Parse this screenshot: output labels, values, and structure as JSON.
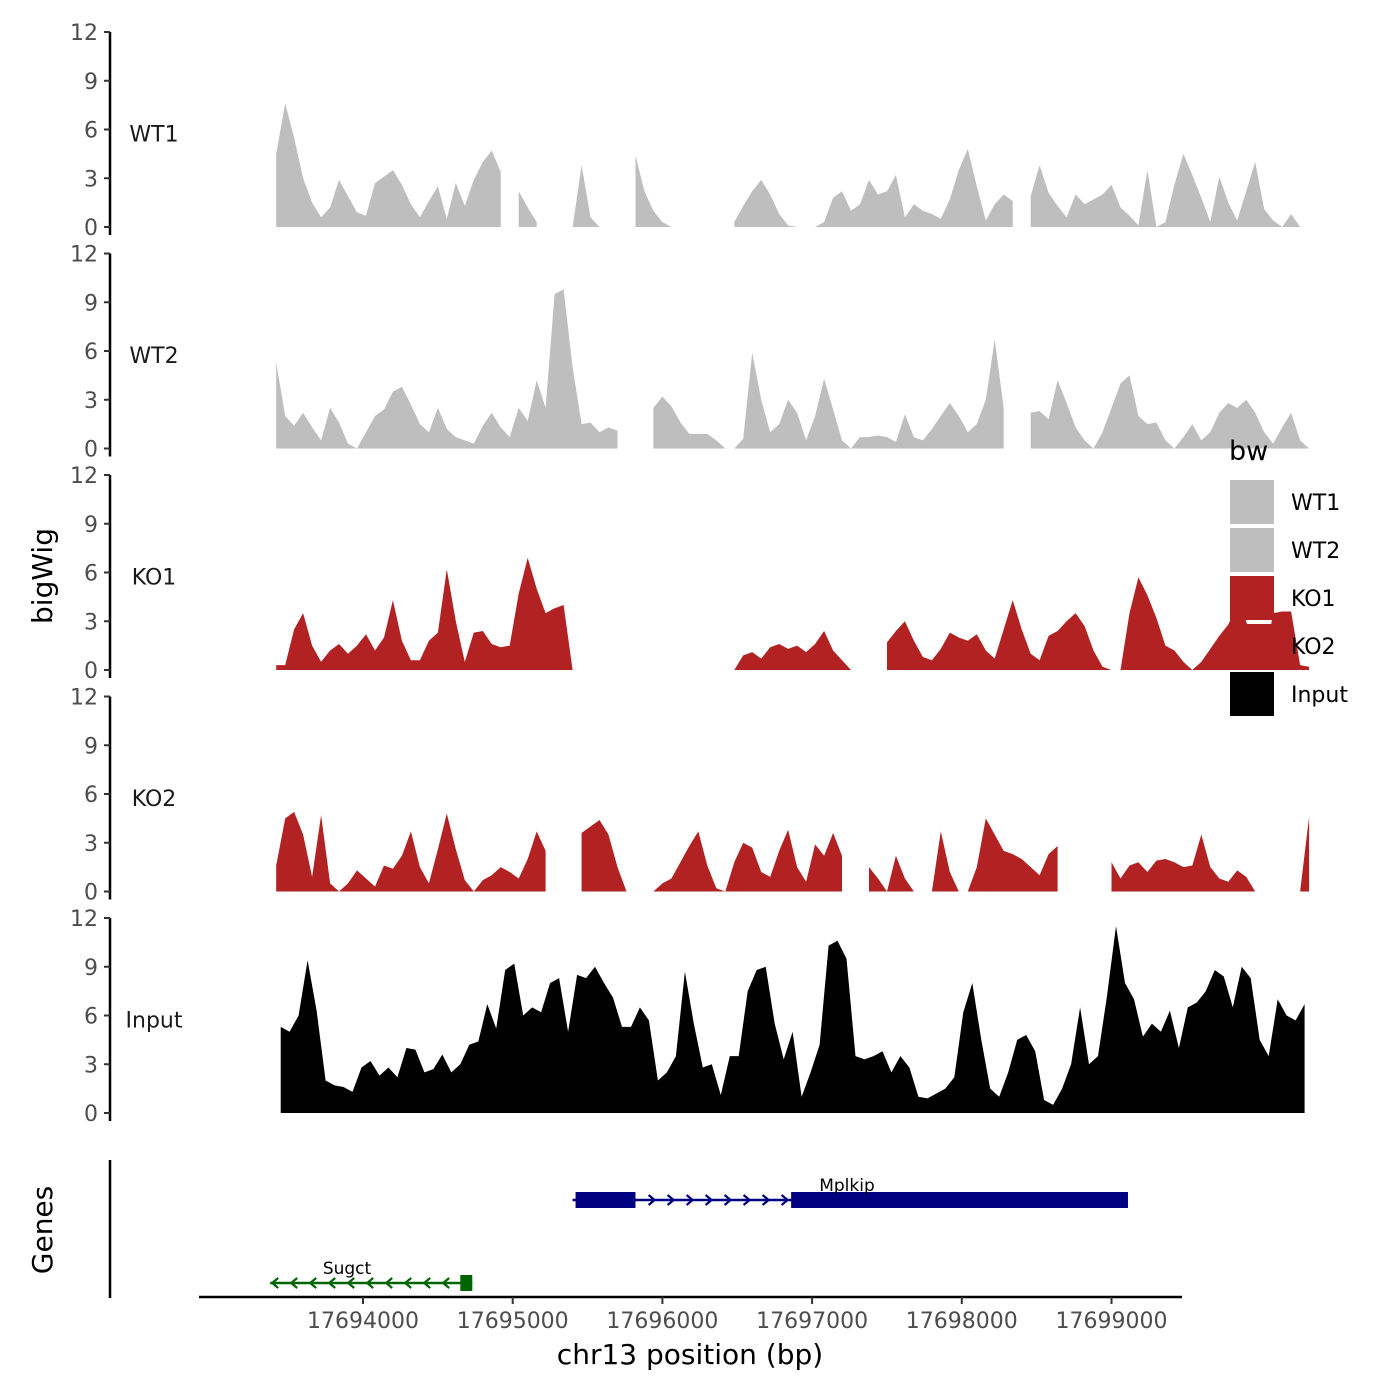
{
  "chart_data": {
    "type": "area",
    "ylabel": "bigWig",
    "xlabel": "chr13 position (bp)",
    "xlim": [
      17693100,
      17699200
    ],
    "x_ticks": [
      17694000,
      17695000,
      17696000,
      17697000,
      17698000,
      17699000
    ],
    "x_tick_labels": [
      "17694000",
      "17695000",
      "17696000",
      "17697000",
      "17698000",
      "17699000"
    ],
    "ylim": [
      0,
      12
    ],
    "y_ticks": [
      0,
      3,
      6,
      9,
      12
    ],
    "y_tick_labels": [
      "0",
      "3",
      "6",
      "9",
      "12"
    ],
    "legend": {
      "title": "bw",
      "placement": "right",
      "entries": [
        {
          "label": "WT1",
          "color": "#bebebe"
        },
        {
          "label": "WT2",
          "color": "#bebebe"
        },
        {
          "label": "KO1",
          "color": "#b22222"
        },
        {
          "label": "KO2",
          "color": "#b22222"
        },
        {
          "label": "Input",
          "color": "#000000"
        }
      ]
    },
    "series": [
      {
        "name": "WT1",
        "color": "#bebebe",
        "x_start": 17693420,
        "step": 60,
        "values": [
          4.5,
          7.6,
          5.5,
          3.0,
          1.5,
          0.6,
          1.2,
          2.9,
          1.9,
          0.9,
          0.7,
          2.7,
          3.1,
          3.5,
          2.6,
          1.4,
          0.6,
          1.6,
          2.5,
          0.5,
          2.7,
          1.3,
          2.9,
          4.0,
          4.7,
          3.4,
          2.2,
          2.2,
          1.2,
          0.3,
          0,
          0,
          0,
          0,
          3.8,
          0.6,
          0,
          0,
          2.8,
          1.8,
          4.4,
          2.2,
          1.0,
          0.3,
          0,
          0,
          0,
          0,
          0,
          0,
          0,
          0.3,
          1.3,
          2.2,
          2.9,
          2.0,
          0.8,
          0.1,
          0,
          0,
          0,
          0.3,
          1.8,
          2.2,
          1.0,
          1.4,
          2.9,
          2.0,
          2.2,
          3.2,
          0.6,
          1.4,
          1.0,
          0.8,
          0.5,
          1.7,
          3.5,
          4.8,
          2.5,
          0.4,
          1.4,
          2.0,
          1.6,
          0.4,
          1.9,
          3.8,
          2.1,
          1.3,
          0.6,
          2.0,
          1.4,
          1.7,
          2.0,
          2.6,
          1.2,
          0.7,
          0.1,
          3.5,
          0,
          0.3,
          2.6,
          4.5,
          3.2,
          1.8,
          0.3,
          3.1,
          1.5,
          0.4,
          2.2,
          4.0,
          1.1,
          0.4,
          0.0,
          0.8,
          0.0
        ],
        "gaps": [
          [
            17694960,
            17695000
          ],
          [
            17695200,
            17695240
          ],
          [
            17695600,
            17695780
          ],
          [
            17696360,
            17696440
          ],
          [
            17698360,
            17698400
          ]
        ]
      },
      {
        "name": "WT2",
        "color": "#bebebe",
        "x_start": 17693420,
        "step": 60,
        "values": [
          5.3,
          2.0,
          1.4,
          2.2,
          1.3,
          0.5,
          2.5,
          1.6,
          0.3,
          0,
          1.0,
          2.0,
          2.4,
          3.5,
          3.8,
          2.7,
          1.5,
          1.0,
          2.5,
          1.2,
          0.7,
          0.5,
          0.3,
          1.4,
          2.2,
          1.3,
          0.7,
          2.5,
          1.7,
          4.2,
          2.5,
          9.5,
          9.8,
          5.0,
          1.5,
          1.6,
          1.0,
          1.3,
          1.1,
          1.9,
          4.3,
          3.1,
          2.5,
          3.2,
          2.6,
          1.6,
          0.9,
          0.9,
          0.9,
          0.5,
          0,
          0,
          0.6,
          5.9,
          3.0,
          1.0,
          1.5,
          3.0,
          2.2,
          0.5,
          2.0,
          4.3,
          2.4,
          0.5,
          0.0,
          0.7,
          0.7,
          0.8,
          0.7,
          0.4,
          2.1,
          0.7,
          0.5,
          1.2,
          2.0,
          2.8,
          2.0,
          1.0,
          1.5,
          3.0,
          6.7,
          2.5,
          1.5,
          1.1,
          2.2,
          2.3,
          1.8,
          4.2,
          2.8,
          1.3,
          0.5,
          0,
          1.0,
          2.5,
          4.0,
          4.5,
          2.0,
          1.5,
          1.6,
          0.5,
          0,
          0.7,
          1.5,
          0.5,
          1.0,
          2.2,
          2.8,
          2.5,
          3.0,
          2.2,
          1.0,
          0.3,
          1.3,
          2.2,
          0.5,
          0.0
        ],
        "gaps": [
          [
            17695760,
            17695880
          ],
          [
            17698340,
            17698420
          ]
        ]
      },
      {
        "name": "KO1",
        "color": "#b22222",
        "x_start": 17693420,
        "step": 60,
        "values": [
          0.3,
          0.3,
          2.5,
          3.5,
          1.5,
          0.5,
          1.2,
          1.6,
          1.0,
          1.5,
          2.2,
          1.2,
          2.0,
          4.3,
          1.8,
          0.6,
          0.6,
          1.8,
          2.3,
          6.2,
          3.0,
          0.5,
          2.3,
          2.4,
          1.6,
          1.4,
          1.5,
          4.7,
          6.9,
          5.0,
          3.5,
          3.8,
          4.0,
          0,
          0,
          0,
          0,
          0,
          0,
          0.6,
          0.7,
          0.3,
          0,
          0,
          0,
          0,
          0,
          0,
          0,
          0,
          0,
          0,
          0.9,
          1.1,
          0.7,
          1.4,
          1.6,
          1.3,
          1.5,
          1.1,
          1.6,
          2.4,
          1.2,
          0.6,
          0,
          0,
          0,
          0.8,
          1.7,
          2.4,
          3.0,
          1.8,
          0.8,
          0.6,
          1.3,
          2.3,
          2.0,
          1.8,
          2.2,
          1.2,
          0.7,
          2.5,
          4.3,
          2.5,
          1.0,
          0.6,
          2.1,
          2.4,
          3.0,
          3.5,
          2.7,
          1.2,
          0.2,
          0,
          0,
          3.5,
          5.7,
          4.6,
          3.2,
          1.5,
          1.2,
          0.5,
          0,
          0.5,
          1.3,
          2.1,
          2.8,
          4.0,
          3.0,
          1.0,
          0.5,
          3.5,
          3.6,
          3.6,
          0.3,
          0.2
        ],
        "gaps": [
          [
            17695420,
            17695940
          ],
          [
            17697400,
            17697470
          ]
        ]
      },
      {
        "name": "KO2",
        "color": "#b22222",
        "x_start": 17693420,
        "step": 60,
        "values": [
          1.6,
          4.5,
          4.9,
          3.5,
          0.9,
          4.7,
          0.5,
          0,
          0.5,
          1.3,
          0.8,
          0.3,
          1.6,
          1.4,
          2.2,
          3.7,
          1.5,
          0.5,
          2.6,
          4.8,
          2.6,
          0.7,
          0,
          0.7,
          1.0,
          1.5,
          1.2,
          0.8,
          2.0,
          3.7,
          2.5,
          1.5,
          0.8,
          1.5,
          3.6,
          4.0,
          4.4,
          3.5,
          1.5,
          0,
          0,
          0,
          0,
          0.5,
          0.8,
          1.8,
          2.8,
          3.7,
          1.6,
          0.2,
          0,
          1.8,
          3.0,
          2.7,
          1.2,
          0.9,
          2.5,
          3.8,
          1.5,
          0.6,
          2.9,
          2.2,
          3.6,
          2.2,
          0.5,
          0,
          1.5,
          0.8,
          0,
          2.2,
          0.8,
          0,
          0,
          0,
          3.7,
          1.2,
          0,
          0,
          1.5,
          4.5,
          3.5,
          2.5,
          2.3,
          2.0,
          1.5,
          1.0,
          2.3,
          2.8,
          2.0,
          0.5,
          0,
          0.6,
          2.8,
          1.8,
          0.8,
          1.6,
          1.8,
          1.2,
          1.9,
          2.0,
          1.8,
          1.5,
          1.6,
          3.5,
          1.5,
          0.8,
          0.6,
          1.3,
          0.9,
          0,
          0,
          0,
          0,
          0,
          0,
          4.6
        ],
        "gaps": [
          [
            17695280,
            17695420
          ],
          [
            17697260,
            17697340
          ],
          [
            17698700,
            17698960
          ]
        ]
      },
      {
        "name": "Input",
        "color": "#000000",
        "x_start": 17693450,
        "step": 60,
        "values": [
          5.3,
          5.0,
          6.0,
          9.4,
          6.3,
          2.0,
          1.7,
          1.6,
          1.3,
          2.8,
          3.2,
          2.3,
          2.8,
          2.2,
          4.0,
          3.9,
          2.5,
          2.7,
          3.6,
          2.5,
          3.0,
          4.2,
          4.4,
          6.7,
          5.2,
          8.8,
          9.2,
          6.0,
          6.5,
          6.2,
          8.0,
          8.3,
          5.0,
          8.5,
          8.3,
          9.0,
          8.0,
          7.1,
          5.3,
          5.3,
          6.5,
          5.7,
          2.0,
          2.5,
          3.5,
          8.7,
          5.5,
          2.8,
          3.0,
          1.1,
          3.5,
          3.5,
          7.5,
          8.8,
          9.0,
          5.5,
          3.3,
          5.0,
          1.0,
          2.5,
          4.2,
          10.3,
          10.6,
          9.5,
          3.5,
          3.3,
          3.5,
          3.8,
          2.5,
          3.5,
          2.8,
          1.0,
          0.9,
          1.2,
          1.5,
          2.2,
          6.2,
          8.0,
          4.5,
          1.5,
          1.0,
          2.5,
          4.5,
          4.8,
          3.8,
          0.8,
          0.5,
          1.5,
          3.0,
          6.5,
          3.0,
          3.5,
          7.2,
          11.5,
          8.0,
          7.0,
          4.7,
          5.5,
          5.0,
          6.3,
          4.0,
          6.5,
          6.8,
          7.5,
          8.8,
          8.4,
          6.5,
          9.0,
          8.3,
          4.5,
          3.5,
          7.0,
          6.0,
          5.7,
          6.7
        ]
      }
    ],
    "genes": [
      {
        "name": "Sugct",
        "strand": "-",
        "color": "#006400",
        "start": 17693380,
        "end": 17694730,
        "exons": [
          [
            17694650,
            17694730
          ]
        ]
      },
      {
        "name": "Mplkip",
        "strand": "+",
        "color": "#000080",
        "start": 17695400,
        "end": 17699110,
        "exons": [
          [
            17695420,
            17695820
          ],
          [
            17696860,
            17699110
          ]
        ]
      }
    ],
    "genes_track_label": "Genes"
  }
}
